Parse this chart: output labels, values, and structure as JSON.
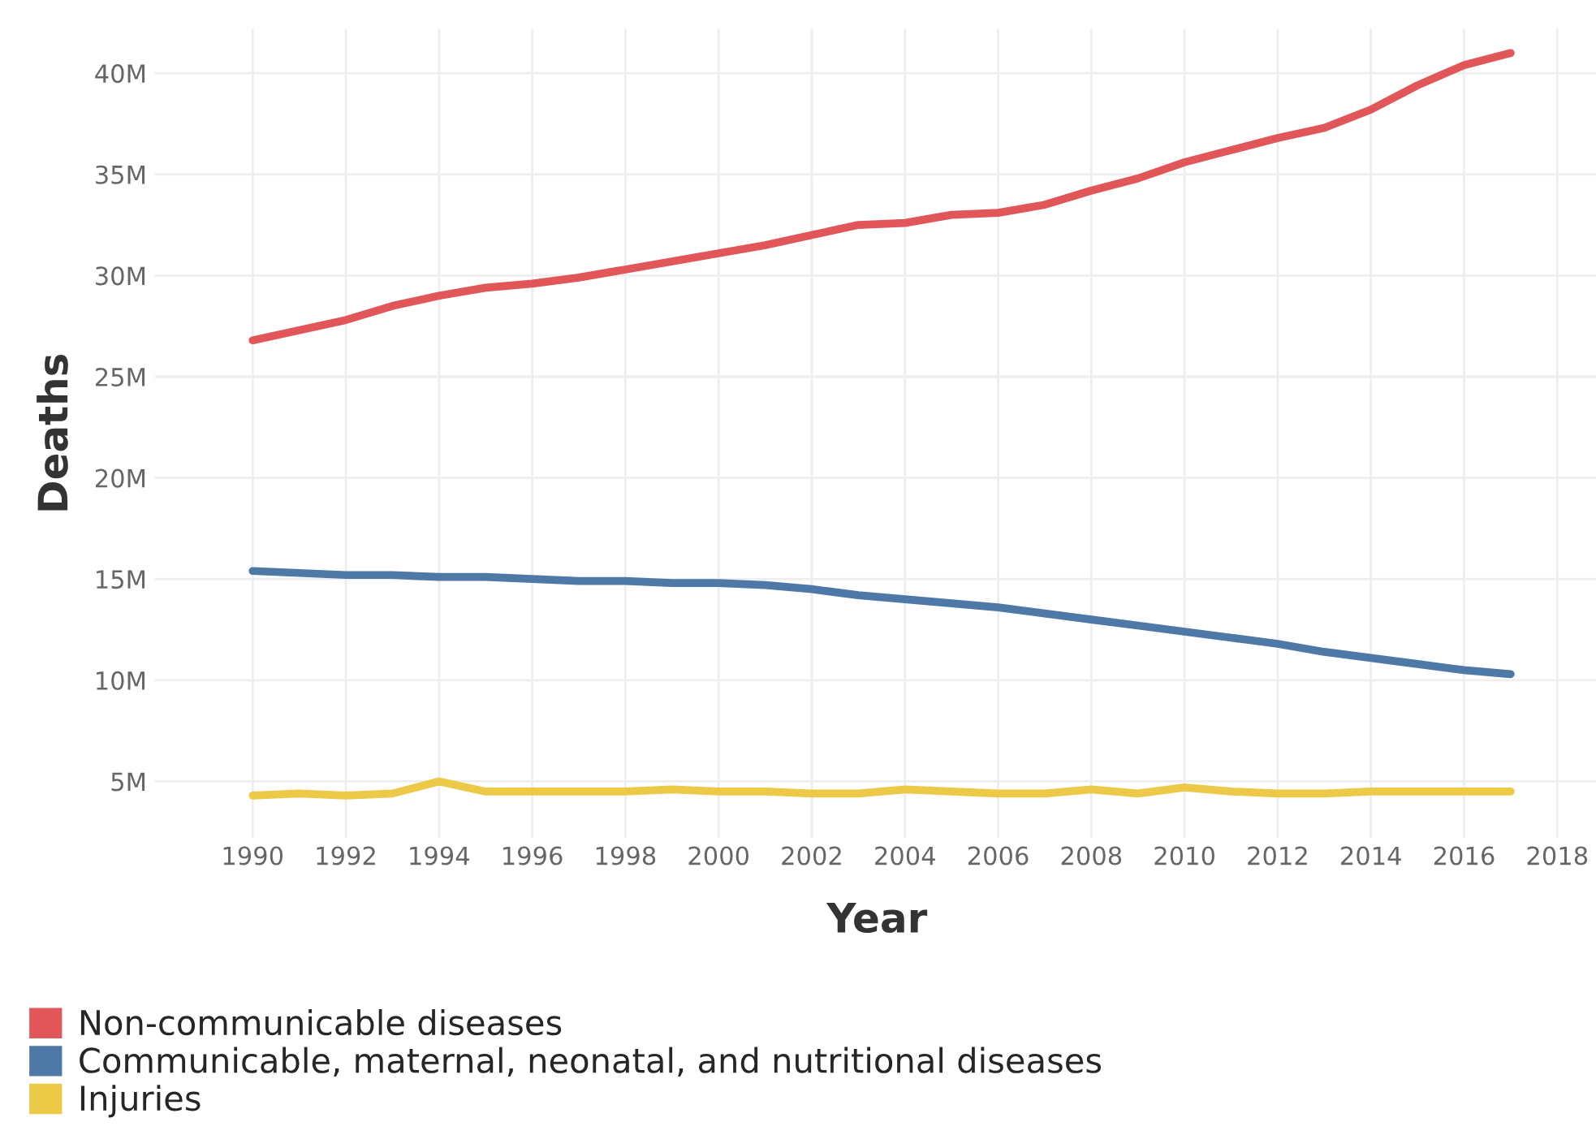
{
  "chart_data": {
    "type": "line",
    "xlabel": "Year",
    "ylabel": "Deaths",
    "x": [
      1990,
      1991,
      1992,
      1993,
      1994,
      1995,
      1996,
      1997,
      1998,
      1999,
      2000,
      2001,
      2002,
      2003,
      2004,
      2005,
      2006,
      2007,
      2008,
      2009,
      2010,
      2011,
      2012,
      2013,
      2014,
      2015,
      2016,
      2017
    ],
    "series": [
      {
        "name": "Non-communicable diseases",
        "color": "#e15759",
        "values": [
          26.8,
          27.3,
          27.8,
          28.5,
          29.0,
          29.4,
          29.6,
          29.9,
          30.3,
          30.7,
          31.1,
          31.5,
          32.0,
          32.5,
          32.6,
          33.0,
          33.1,
          33.5,
          34.2,
          34.8,
          35.6,
          36.2,
          36.8,
          37.3,
          38.2,
          39.4,
          40.4,
          41.0
        ]
      },
      {
        "name": "Communicable, maternal, neonatal, and nutritional diseases",
        "color": "#4e79a7",
        "values": [
          15.4,
          15.3,
          15.2,
          15.2,
          15.1,
          15.1,
          15.0,
          14.9,
          14.9,
          14.8,
          14.8,
          14.7,
          14.5,
          14.2,
          14.0,
          13.8,
          13.6,
          13.3,
          13.0,
          12.7,
          12.4,
          12.1,
          11.8,
          11.4,
          11.1,
          10.8,
          10.5,
          10.3
        ]
      },
      {
        "name": "Injuries",
        "color": "#edc948",
        "values": [
          4.3,
          4.4,
          4.3,
          4.4,
          5.0,
          4.5,
          4.5,
          4.5,
          4.5,
          4.6,
          4.5,
          4.5,
          4.4,
          4.4,
          4.6,
          4.5,
          4.4,
          4.4,
          4.6,
          4.4,
          4.7,
          4.5,
          4.4,
          4.4,
          4.5,
          4.5,
          4.5,
          4.5
        ]
      }
    ],
    "xlim": [
      1987.9,
      2018.9
    ],
    "xticks": [
      1990,
      1992,
      1994,
      1996,
      1998,
      2000,
      2002,
      2004,
      2006,
      2008,
      2010,
      2012,
      2014,
      2016,
      2018
    ],
    "ylim": [
      2.2,
      42.2
    ],
    "yticks": [
      {
        "value": 5,
        "label": "5M"
      },
      {
        "value": 10,
        "label": "10M"
      },
      {
        "value": 15,
        "label": "15M"
      },
      {
        "value": 20,
        "label": "20M"
      },
      {
        "value": 25,
        "label": "25M"
      },
      {
        "value": 30,
        "label": "30M"
      },
      {
        "value": 35,
        "label": "35M"
      },
      {
        "value": 40,
        "label": "40M"
      }
    ],
    "grid": true,
    "legend": "bottom left",
    "marker": "none",
    "line_style": "solid"
  }
}
